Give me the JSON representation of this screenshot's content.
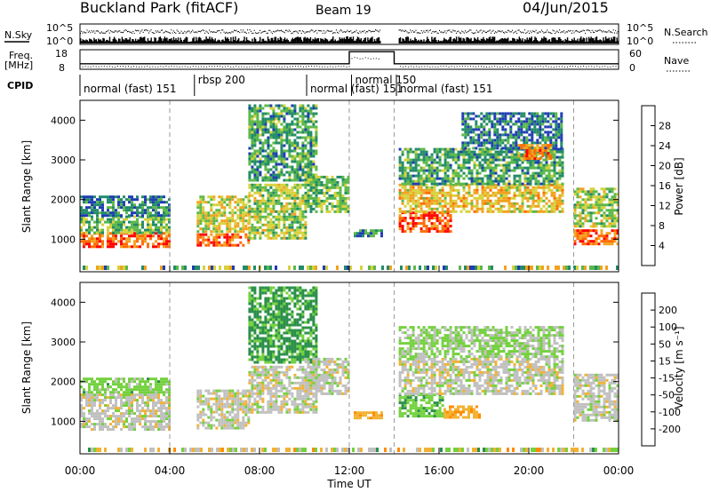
{
  "header": {
    "station": "Buckland Park (fitACF)",
    "beam": "Beam 19",
    "date": "04/Jun/2015"
  },
  "strip": {
    "nsky_label": "N.Sky",
    "nsearch_label": "N.Search",
    "nsky_ticks": [
      "10^5",
      "10^0"
    ],
    "nsearch_ticks": [
      "10^5",
      "10^0"
    ],
    "freq_label_1": "Freq.",
    "freq_label_2": "[MHz]",
    "freq_ticks": [
      "18",
      "8"
    ],
    "nave_label": "Nave",
    "nave_ticks": [
      "60",
      "0"
    ],
    "cpid_label": "CPID",
    "cpid_segments": [
      {
        "start": 0.0,
        "end": 5.1,
        "text": "normal (fast) 151"
      },
      {
        "start": 5.1,
        "end": 10.1,
        "text": "rbsp  200"
      },
      {
        "start": 10.1,
        "end": 12.1,
        "text": "normal (fast) 151"
      },
      {
        "start": 12.1,
        "end": 14.1,
        "text": "normal 150"
      },
      {
        "start": 14.1,
        "end": 24.0,
        "text": "normal (fast) 151"
      }
    ],
    "freq_segments": [
      {
        "start": 0.0,
        "end": 12.0,
        "mhz": 10.8
      },
      {
        "start": 12.0,
        "end": 14.0,
        "mhz": 17.0
      },
      {
        "start": 14.0,
        "end": 24.0,
        "mhz": 10.8
      }
    ]
  },
  "axes": {
    "ylabel": "Slant Range [km]",
    "xlabel": "Time UT",
    "ylim": [
      180,
      4500
    ],
    "yticks": [
      1000,
      2000,
      3000,
      4000
    ],
    "xlim": [
      0,
      24
    ],
    "xticks": [
      0,
      4,
      8,
      12,
      16,
      20,
      24
    ],
    "xtick_labels": [
      "00:00",
      "04:00",
      "08:00",
      "12:00",
      "16:00",
      "20:00",
      "00:00"
    ],
    "dashed_hours": [
      4.0,
      12.0,
      14.0,
      22.0
    ]
  },
  "colorbars": {
    "power": {
      "label": "Power [dB]",
      "ticks": [
        "4",
        "8",
        "12",
        "16",
        "20",
        "24",
        "28"
      ],
      "colors": [
        "#0000ff",
        "#1e3cb4",
        "#228b68",
        "#5bb84a",
        "#d6d23c",
        "#f2a11e",
        "#ff6a00",
        "#ff0000"
      ]
    },
    "velocity": {
      "label": "Velocity [m s⁻¹]",
      "ticks": [
        "200",
        "100",
        "50",
        "15",
        "-15",
        "-50",
        "-100",
        "-200"
      ],
      "colors": [
        "#0000ff",
        "#1a4fa0",
        "#2b8f4a",
        "#73d13d",
        "#c0c0c0",
        "#f2b233",
        "#ff8c00",
        "#ff3a1a",
        "#ff0000"
      ]
    }
  },
  "chart_data": [
    {
      "type": "heatmap",
      "name": "power",
      "x_unit": "hour UT",
      "y_unit": "km",
      "regions": [
        {
          "t0": 0.0,
          "t1": 4.0,
          "r0": 820,
          "r1": 1180,
          "level": 26
        },
        {
          "t0": 0.0,
          "t1": 4.0,
          "r0": 1180,
          "r1": 1600,
          "level": 14
        },
        {
          "t0": 0.0,
          "t1": 4.0,
          "r0": 1600,
          "r1": 2100,
          "level": 9
        },
        {
          "t0": 5.2,
          "t1": 7.5,
          "r0": 820,
          "r1": 1150,
          "level": 26
        },
        {
          "t0": 5.2,
          "t1": 7.5,
          "r0": 1200,
          "r1": 2100,
          "level": 18
        },
        {
          "t0": 7.5,
          "t1": 10.0,
          "r0": 1000,
          "r1": 2400,
          "level": 16
        },
        {
          "t0": 7.5,
          "t1": 10.5,
          "r0": 2500,
          "r1": 4400,
          "level": 12
        },
        {
          "t0": 10.0,
          "t1": 12.0,
          "r0": 1700,
          "r1": 2600,
          "level": 14
        },
        {
          "t0": 12.2,
          "t1": 13.4,
          "r0": 1050,
          "r1": 1250,
          "level": 10
        },
        {
          "t0": 14.2,
          "t1": 16.5,
          "r0": 1200,
          "r1": 1700,
          "level": 28
        },
        {
          "t0": 14.2,
          "t1": 21.5,
          "r0": 1700,
          "r1": 2400,
          "level": 20
        },
        {
          "t0": 14.2,
          "t1": 21.5,
          "r0": 2400,
          "r1": 3300,
          "level": 12
        },
        {
          "t0": 17.0,
          "t1": 21.5,
          "r0": 3300,
          "r1": 4200,
          "level": 9
        },
        {
          "t0": 19.5,
          "t1": 21.0,
          "r0": 3000,
          "r1": 3400,
          "level": 24
        },
        {
          "t0": 22.0,
          "t1": 24.0,
          "r0": 850,
          "r1": 1250,
          "level": 26
        },
        {
          "t0": 22.0,
          "t1": 24.0,
          "r0": 1300,
          "r1": 2300,
          "level": 16
        }
      ]
    },
    {
      "type": "heatmap",
      "name": "velocity",
      "x_unit": "hour UT",
      "y_unit": "km",
      "regions": [
        {
          "t0": 0.0,
          "t1": 4.0,
          "r0": 820,
          "r1": 1700,
          "level": 0
        },
        {
          "t0": 0.0,
          "t1": 4.0,
          "r0": 1700,
          "r1": 2100,
          "level": 30
        },
        {
          "t0": 5.2,
          "t1": 7.5,
          "r0": 800,
          "r1": 1800,
          "level": 0
        },
        {
          "t0": 7.5,
          "t1": 10.5,
          "r0": 1200,
          "r1": 2400,
          "level": 0
        },
        {
          "t0": 7.5,
          "t1": 10.5,
          "r0": 2500,
          "r1": 4400,
          "level": 60
        },
        {
          "t0": 10.0,
          "t1": 12.0,
          "r0": 1700,
          "r1": 2600,
          "level": 0
        },
        {
          "t0": 12.2,
          "t1": 13.4,
          "r0": 1050,
          "r1": 1250,
          "level": -40
        },
        {
          "t0": 14.2,
          "t1": 16.2,
          "r0": 1100,
          "r1": 1700,
          "level": 40
        },
        {
          "t0": 16.2,
          "t1": 17.8,
          "r0": 1100,
          "r1": 1400,
          "level": -40
        },
        {
          "t0": 14.2,
          "t1": 21.5,
          "r0": 1700,
          "r1": 2600,
          "level": 0
        },
        {
          "t0": 14.2,
          "t1": 21.5,
          "r0": 2600,
          "r1": 3400,
          "level": 20
        },
        {
          "t0": 22.0,
          "t1": 24.0,
          "r0": 1000,
          "r1": 2200,
          "level": 0
        }
      ]
    }
  ]
}
